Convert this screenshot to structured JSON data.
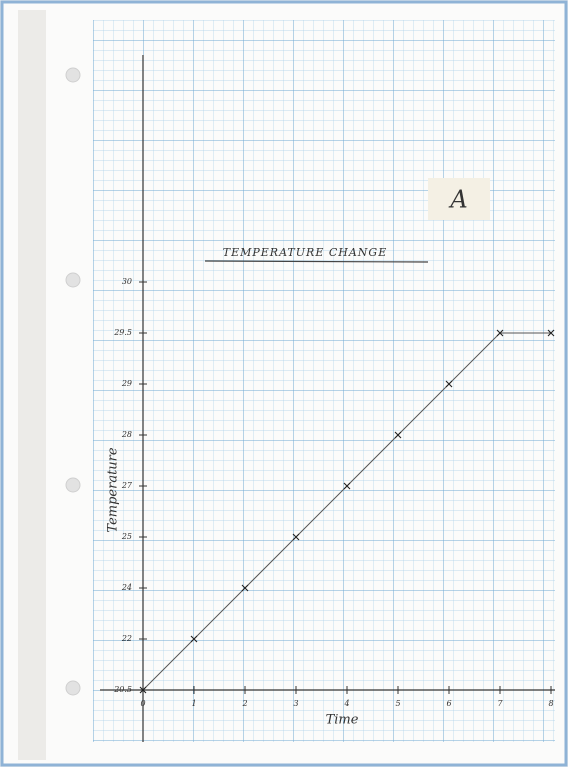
{
  "chart_data": {
    "type": "line",
    "title": "TEMPERATURE CHANGE",
    "x_label": "Time",
    "y_label": "Temperature",
    "annotation": "A",
    "x": [
      0,
      1,
      2,
      3,
      4,
      5,
      6,
      7,
      8
    ],
    "series": [
      {
        "color": "#555555",
        "values": [
          20.5,
          22,
          24,
          25,
          27,
          28,
          29,
          29.5,
          29.5
        ]
      }
    ],
    "xlim": [
      0,
      8
    ],
    "xticks": [
      0,
      1,
      2,
      3,
      4,
      5,
      6,
      7,
      8
    ],
    "ylim": [
      20,
      31.5
    ],
    "yticks": [
      20.5,
      22,
      24,
      25,
      27,
      28,
      29,
      29.5,
      30
    ],
    "grid": true
  }
}
